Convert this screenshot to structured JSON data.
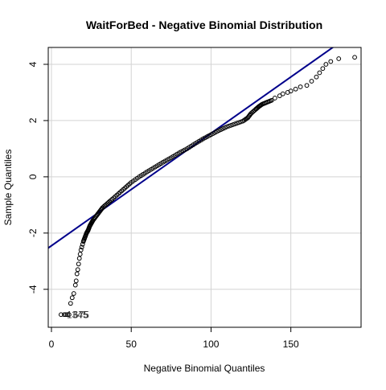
{
  "chart_data": {
    "type": "scatter",
    "title": "WaitForBed - Negative Binomial Distribution",
    "xlabel": "Negative Binomial Quantiles",
    "ylabel": "Sample Quantiles",
    "xlim": [
      -2,
      194
    ],
    "ylim": [
      -5.35,
      4.6
    ],
    "x_ticks": [
      0,
      50,
      100,
      150
    ],
    "y_ticks": [
      -4,
      -2,
      0,
      2,
      4
    ],
    "grid": true,
    "colors": {
      "points": "#000000",
      "reference_line": "#00008B",
      "grid": "#D3D3D3"
    },
    "reference_line": {
      "intercept": -2.45,
      "slope": 0.04
    },
    "series": [
      {
        "x": [
          6,
          8,
          9,
          10,
          11,
          12,
          13,
          14,
          15,
          15.5,
          16,
          16.5,
          17,
          17.5,
          18,
          18.5,
          19,
          19.5,
          20,
          21,
          22,
          23,
          24,
          25,
          26,
          28,
          30,
          32,
          35,
          38,
          42,
          46,
          50,
          55,
          60,
          65,
          70,
          75,
          80,
          85,
          90,
          95,
          100,
          105,
          110,
          115,
          120,
          123,
          125,
          128,
          130,
          132,
          135,
          138,
          140,
          143,
          145,
          148,
          150,
          153,
          156,
          160,
          163,
          166,
          168,
          170,
          172,
          175,
          180,
          190
        ],
        "y": [
          -4.9,
          -4.9,
          -4.9,
          -4.9,
          -4.9,
          -4.5,
          -4.3,
          -4.15,
          -3.85,
          -3.7,
          -3.45,
          -3.3,
          -3.1,
          -2.9,
          -2.75,
          -2.6,
          -2.5,
          -2.4,
          -2.3,
          -2.15,
          -2.0,
          -1.9,
          -1.75,
          -1.65,
          -1.55,
          -1.4,
          -1.25,
          -1.1,
          -0.95,
          -0.8,
          -0.6,
          -0.4,
          -0.2,
          0.0,
          0.18,
          0.35,
          0.52,
          0.68,
          0.85,
          1.0,
          1.18,
          1.35,
          1.5,
          1.65,
          1.78,
          1.88,
          1.98,
          2.1,
          2.25,
          2.4,
          2.5,
          2.58,
          2.65,
          2.72,
          2.8,
          2.88,
          2.95,
          3.0,
          3.05,
          3.12,
          3.2,
          3.25,
          3.4,
          3.55,
          3.7,
          3.85,
          4.0,
          4.1,
          4.2,
          4.25
        ]
      }
    ],
    "annotations": [
      {
        "text": "1345",
        "x": 8,
        "y": -4.9
      },
      {
        "text": "675",
        "x": 12,
        "y": -4.9
      }
    ]
  }
}
